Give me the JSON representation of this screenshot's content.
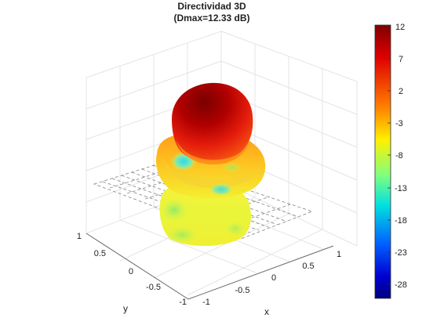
{
  "chart_data": {
    "type": "surface3d",
    "title": "Directividad 3D",
    "subtitle": "(Dmax=12.33 dB)",
    "xlabel": "x",
    "ylabel": "y",
    "x_ticks": [
      "-1",
      "-0.5",
      "0",
      "0.5",
      "1"
    ],
    "y_ticks": [
      "1",
      "0.5",
      "0",
      "-0.5",
      "-1"
    ],
    "xlim": [
      -1,
      1
    ],
    "ylim": [
      -1,
      1
    ],
    "grid": true,
    "colormap": "jet",
    "colorbar": {
      "range": [
        -30,
        12
      ],
      "ticks": [
        "12",
        "7",
        "2",
        "-3",
        "-8",
        "-13",
        "-18",
        "-23",
        "-28"
      ],
      "tick_values": [
        12,
        7,
        2,
        -3,
        -8,
        -13,
        -18,
        -23,
        -28
      ],
      "placement": "right"
    },
    "dmax_db": 12.33
  },
  "colors": {
    "dark_red": "#7f0000",
    "red": "#e8140f",
    "orange": "#ff8a00",
    "yellow": "#fff000",
    "light_green": "#c8f542",
    "cyan": "#2ad9e0",
    "blue": "#1030c8",
    "dark_blue": "#00007f"
  }
}
